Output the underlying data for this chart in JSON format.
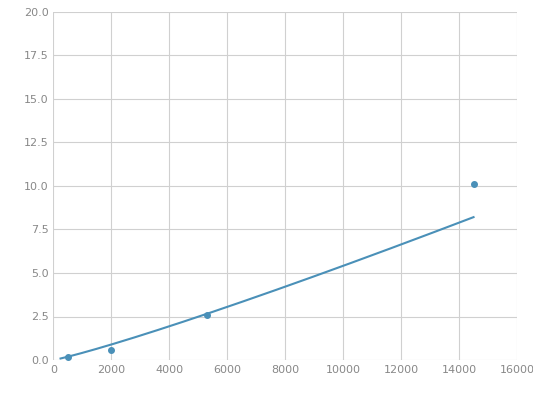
{
  "x": [
    250,
    500,
    2000,
    5300,
    14500
  ],
  "y": [
    0.1,
    0.2,
    0.6,
    2.6,
    10.1
  ],
  "line_color": "#4a90b8",
  "marker_color": "#4a90b8",
  "marker_size": 4,
  "xlim": [
    0,
    16000
  ],
  "ylim": [
    0,
    20.0
  ],
  "xticks": [
    0,
    2000,
    4000,
    6000,
    8000,
    10000,
    12000,
    14000,
    16000
  ],
  "yticks": [
    0.0,
    2.5,
    5.0,
    7.5,
    10.0,
    12.5,
    15.0,
    17.5,
    20.0
  ],
  "grid_color": "#d0d0d0",
  "background_color": "#ffffff",
  "line_width": 1.5,
  "tick_label_color": "#888888",
  "tick_fontsize": 8
}
